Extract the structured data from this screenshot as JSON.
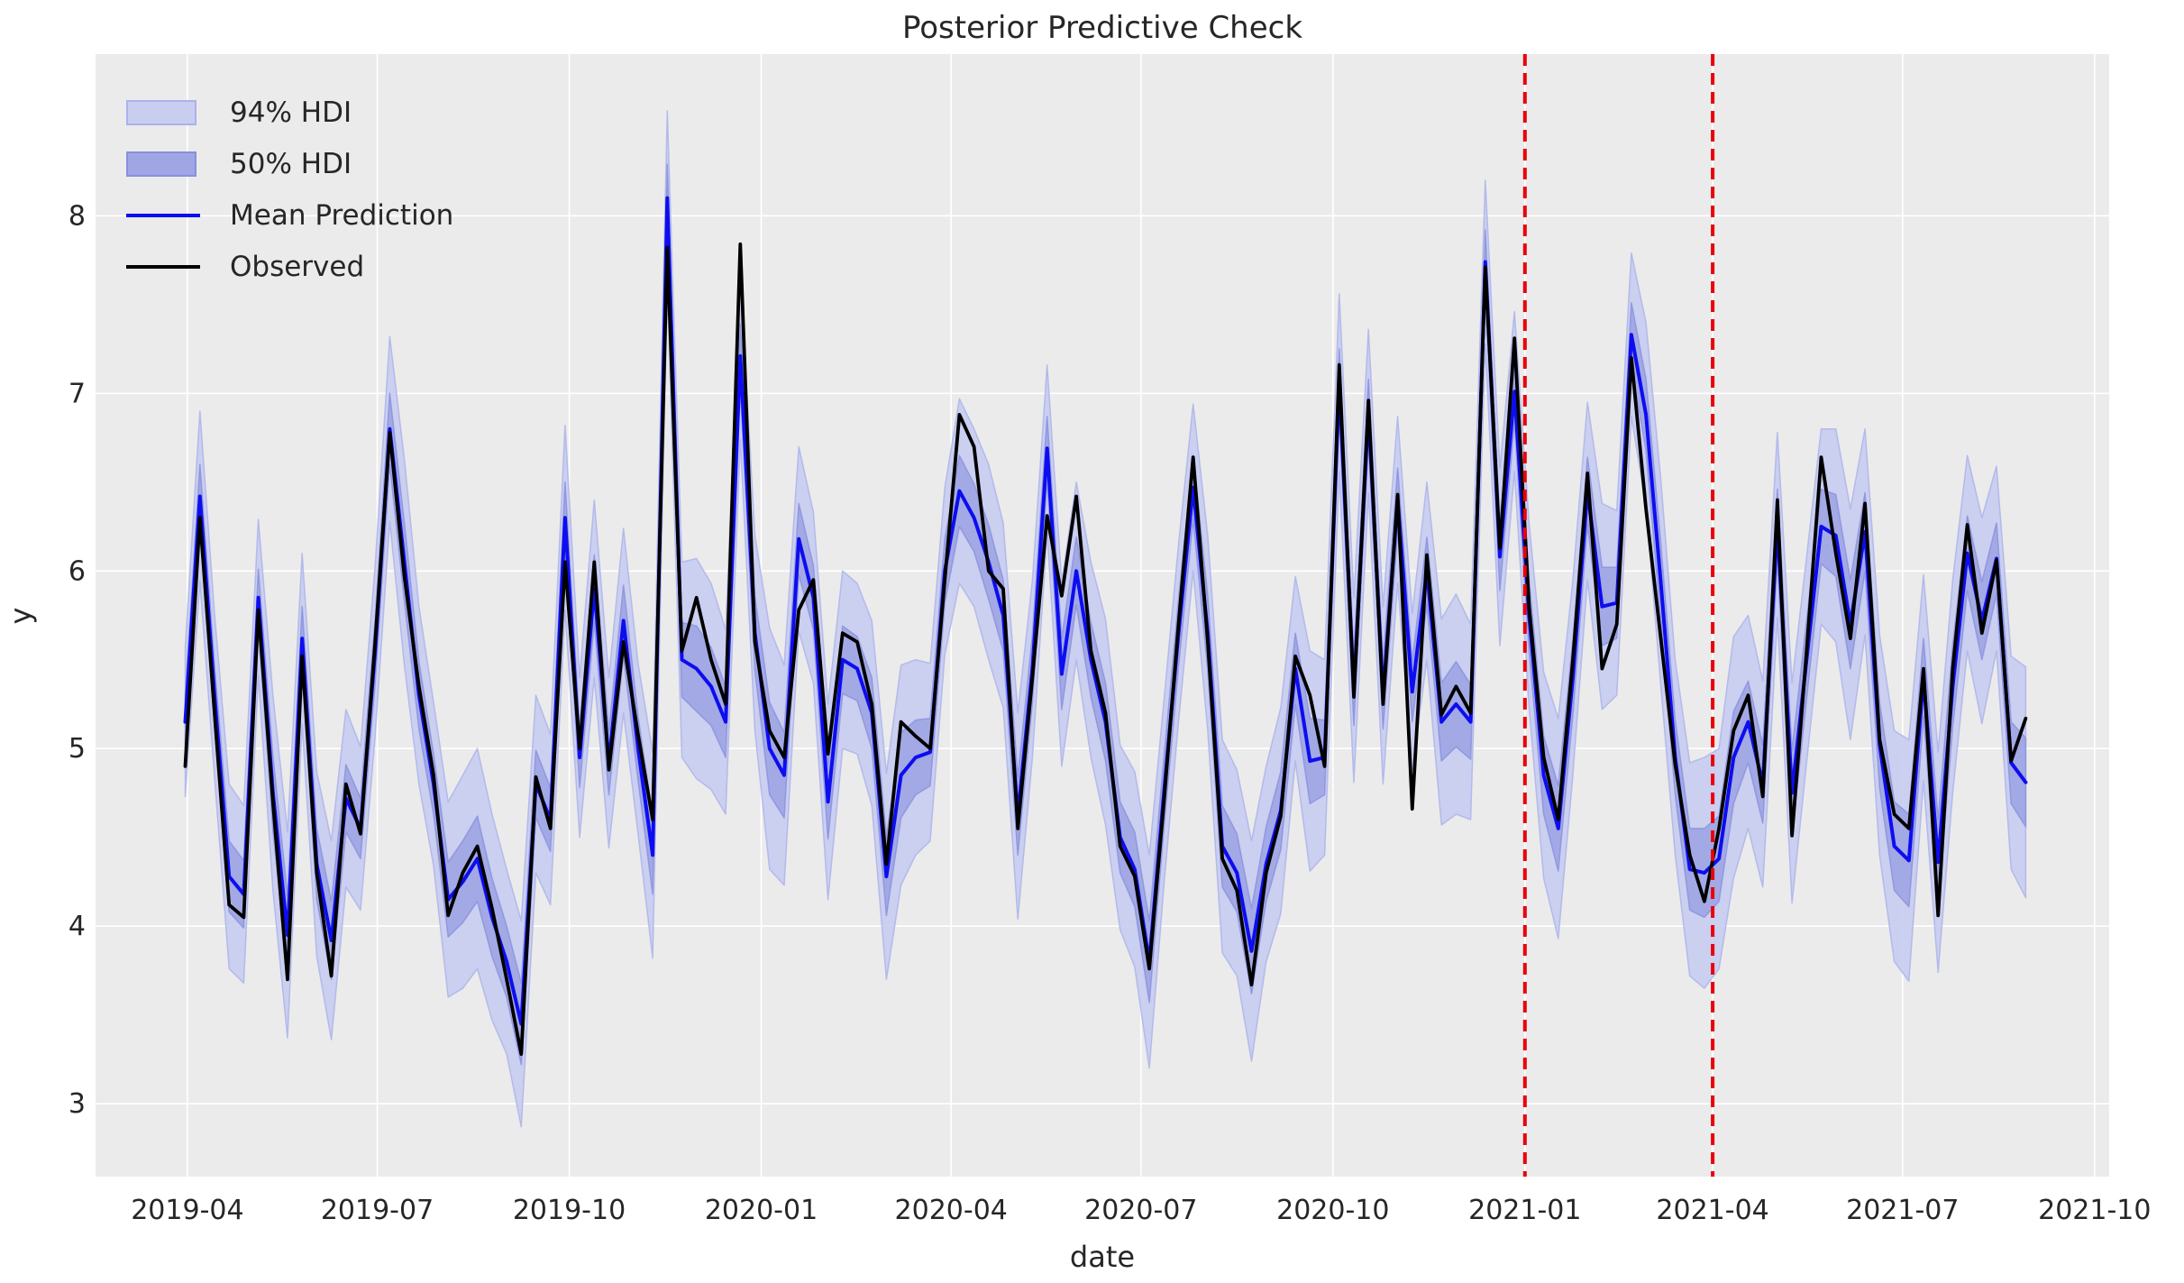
{
  "chart_data": {
    "type": "line",
    "title": "Posterior Predictive Check",
    "xlabel": "date",
    "ylabel": "y",
    "grid": true,
    "legend_position": "upper-left",
    "background": {
      "figure": "#ffffff",
      "axes": "#ebebeb",
      "gridline": "#ffffff"
    },
    "colors": {
      "hdi94_fill": "#c9cdf0",
      "hdi94_edge": "#aab2ea",
      "hdi50_fill": "#9fa6e3",
      "hdi50_edge": "#8890dd",
      "mean_line": "#0d0df0",
      "observed_line": "#000000",
      "event_line": "#e8000b",
      "text": "#262626"
    },
    "legend": [
      {
        "label": "94% HDI",
        "type": "patch",
        "fill": "#c9cdf0",
        "edge": "#aab2ea"
      },
      {
        "label": "50% HDI",
        "type": "patch",
        "fill": "#9fa6e3",
        "edge": "#8890dd"
      },
      {
        "label": "Mean Prediction",
        "type": "line",
        "color": "#0d0df0"
      },
      {
        "label": "Observed",
        "type": "line",
        "color": "#000000"
      }
    ],
    "xlim": [
      "2019-02-16",
      "2021-10-08"
    ],
    "ylim": [
      2.59,
      8.91
    ],
    "y_ticks": [
      3,
      4,
      5,
      6,
      7,
      8
    ],
    "x_ticks": [
      {
        "label": "2019-04",
        "date": "2019-04-01"
      },
      {
        "label": "2019-07",
        "date": "2019-07-01"
      },
      {
        "label": "2019-10",
        "date": "2019-10-01"
      },
      {
        "label": "2020-01",
        "date": "2020-01-01"
      },
      {
        "label": "2020-04",
        "date": "2020-04-01"
      },
      {
        "label": "2020-07",
        "date": "2020-07-01"
      },
      {
        "label": "2020-10",
        "date": "2020-10-01"
      },
      {
        "label": "2021-01",
        "date": "2021-01-01"
      },
      {
        "label": "2021-04",
        "date": "2021-04-01"
      },
      {
        "label": "2021-07",
        "date": "2021-07-01"
      },
      {
        "label": "2021-10",
        "date": "2021-10-01"
      }
    ],
    "vlines": [
      {
        "date": "2021-01-01",
        "color": "#e8000b",
        "style": "dashed"
      },
      {
        "date": "2021-04-01",
        "color": "#e8000b",
        "style": "dashed"
      }
    ],
    "dates": [
      "2019-03-31",
      "2019-04-07",
      "2019-04-14",
      "2019-04-21",
      "2019-04-28",
      "2019-05-05",
      "2019-05-12",
      "2019-05-19",
      "2019-05-26",
      "2019-06-02",
      "2019-06-09",
      "2019-06-16",
      "2019-06-23",
      "2019-06-30",
      "2019-07-07",
      "2019-07-14",
      "2019-07-21",
      "2019-07-28",
      "2019-08-04",
      "2019-08-11",
      "2019-08-18",
      "2019-08-25",
      "2019-09-01",
      "2019-09-08",
      "2019-09-15",
      "2019-09-22",
      "2019-09-29",
      "2019-10-06",
      "2019-10-13",
      "2019-10-20",
      "2019-10-27",
      "2019-11-03",
      "2019-11-10",
      "2019-11-17",
      "2019-11-24",
      "2019-12-01",
      "2019-12-08",
      "2019-12-15",
      "2019-12-22",
      "2019-12-29",
      "2020-01-05",
      "2020-01-12",
      "2020-01-19",
      "2020-01-26",
      "2020-02-02",
      "2020-02-09",
      "2020-02-16",
      "2020-02-23",
      "2020-03-01",
      "2020-03-08",
      "2020-03-15",
      "2020-03-22",
      "2020-03-29",
      "2020-04-05",
      "2020-04-12",
      "2020-04-19",
      "2020-04-26",
      "2020-05-03",
      "2020-05-10",
      "2020-05-17",
      "2020-05-24",
      "2020-05-31",
      "2020-06-07",
      "2020-06-14",
      "2020-06-21",
      "2020-06-28",
      "2020-07-05",
      "2020-07-12",
      "2020-07-19",
      "2020-07-26",
      "2020-08-02",
      "2020-08-09",
      "2020-08-16",
      "2020-08-23",
      "2020-08-30",
      "2020-09-06",
      "2020-09-13",
      "2020-09-20",
      "2020-09-27",
      "2020-10-04",
      "2020-10-11",
      "2020-10-18",
      "2020-10-25",
      "2020-11-01",
      "2020-11-08",
      "2020-11-15",
      "2020-11-22",
      "2020-11-29",
      "2020-12-06",
      "2020-12-13",
      "2020-12-20",
      "2020-12-27",
      "2021-01-03",
      "2021-01-10",
      "2021-01-17",
      "2021-01-24",
      "2021-01-31",
      "2021-02-07",
      "2021-02-14",
      "2021-02-21",
      "2021-02-28",
      "2021-03-07",
      "2021-03-14",
      "2021-03-21",
      "2021-03-28",
      "2021-04-04",
      "2021-04-11",
      "2021-04-18",
      "2021-04-25",
      "2021-05-02",
      "2021-05-09",
      "2021-05-16",
      "2021-05-23",
      "2021-05-30",
      "2021-06-06",
      "2021-06-13",
      "2021-06-20",
      "2021-06-27",
      "2021-07-04",
      "2021-07-11",
      "2021-07-18",
      "2021-07-25",
      "2021-08-01",
      "2021-08-08",
      "2021-08-15",
      "2021-08-22",
      "2021-08-29"
    ],
    "observed": [
      4.9,
      6.3,
      5.2,
      4.12,
      4.05,
      5.78,
      4.7,
      3.7,
      5.52,
      4.3,
      3.72,
      4.8,
      4.52,
      5.6,
      6.78,
      5.97,
      5.35,
      4.85,
      4.06,
      4.3,
      4.45,
      4.1,
      3.7,
      3.28,
      4.84,
      4.55,
      6.05,
      5.0,
      6.05,
      4.88,
      5.6,
      5.08,
      4.6,
      7.82,
      5.55,
      5.85,
      5.5,
      5.25,
      7.84,
      5.6,
      5.1,
      4.95,
      5.78,
      5.95,
      4.97,
      5.65,
      5.6,
      5.25,
      4.35,
      5.15,
      5.07,
      5.0,
      5.95,
      6.88,
      6.7,
      6.0,
      5.9,
      4.55,
      5.4,
      6.31,
      5.86,
      6.42,
      5.55,
      5.2,
      4.45,
      4.28,
      3.76,
      4.7,
      5.7,
      6.64,
      5.6,
      4.38,
      4.2,
      3.67,
      4.3,
      4.62,
      5.52,
      5.3,
      4.9,
      7.16,
      5.29,
      6.96,
      5.25,
      6.43,
      4.66,
      6.09,
      5.19,
      5.35,
      5.2,
      7.71,
      6.13,
      7.31,
      5.8,
      4.95,
      4.6,
      5.5,
      6.55,
      5.45,
      5.7,
      7.2,
      6.35,
      5.63,
      4.91,
      4.4,
      4.14,
      4.55,
      5.1,
      5.3,
      4.73,
      6.4,
      4.51,
      5.55,
      6.64,
      6.1,
      5.62,
      6.38,
      5.05,
      4.63,
      4.55,
      5.45,
      4.06,
      5.45,
      6.26,
      5.65,
      6.06,
      4.93,
      5.17
    ],
    "mean": [
      5.15,
      6.42,
      5.3,
      4.28,
      4.18,
      5.85,
      4.75,
      3.95,
      5.62,
      4.35,
      3.92,
      4.72,
      4.55,
      5.55,
      6.8,
      6.05,
      5.3,
      4.8,
      4.15,
      4.25,
      4.38,
      4.05,
      3.8,
      3.45,
      4.8,
      4.6,
      6.3,
      4.95,
      5.9,
      4.92,
      5.72,
      5.0,
      4.4,
      8.1,
      5.5,
      5.45,
      5.35,
      5.15,
      7.21,
      5.65,
      5.0,
      4.85,
      6.18,
      5.85,
      4.7,
      5.5,
      5.45,
      5.2,
      4.28,
      4.85,
      4.95,
      4.98,
      6.0,
      6.45,
      6.3,
      6.05,
      5.75,
      4.62,
      5.45,
      6.69,
      5.42,
      6.0,
      5.5,
      5.15,
      4.5,
      4.32,
      3.8,
      4.75,
      5.65,
      6.47,
      5.65,
      4.45,
      4.3,
      3.86,
      4.35,
      4.65,
      5.45,
      4.93,
      4.95,
      7.06,
      5.33,
      6.9,
      5.3,
      6.4,
      5.32,
      6.0,
      5.15,
      5.25,
      5.15,
      7.74,
      6.08,
      7.01,
      5.75,
      4.85,
      4.55,
      5.4,
      6.45,
      5.8,
      5.82,
      7.33,
      6.88,
      5.95,
      4.95,
      4.32,
      4.3,
      4.38,
      4.95,
      5.15,
      4.8,
      6.26,
      4.75,
      5.5,
      6.25,
      6.2,
      5.7,
      6.22,
      5.02,
      4.45,
      4.37,
      5.4,
      4.36,
      5.35,
      6.1,
      5.72,
      6.07,
      4.92,
      4.81
    ],
    "hdi50_half": [
      0.15,
      0.18,
      0.17,
      0.2,
      0.19,
      0.16,
      0.21,
      0.22,
      0.18,
      0.2,
      0.22,
      0.19,
      0.17,
      0.18,
      0.2,
      0.22,
      0.19,
      0.17,
      0.21,
      0.23,
      0.24,
      0.22,
      0.2,
      0.23,
      0.19,
      0.18,
      0.2,
      0.17,
      0.19,
      0.18,
      0.2,
      0.18,
      0.22,
      0.19,
      0.21,
      0.24,
      0.22,
      0.2,
      0.18,
      0.21,
      0.26,
      0.24,
      0.2,
      0.18,
      0.21,
      0.19,
      0.18,
      0.2,
      0.22,
      0.24,
      0.21,
      0.19,
      0.18,
      0.2,
      0.19,
      0.21,
      0.2,
      0.22,
      0.19,
      0.18,
      0.2,
      0.19,
      0.21,
      0.22,
      0.2,
      0.21,
      0.23,
      0.2,
      0.19,
      0.18,
      0.21,
      0.23,
      0.22,
      0.24,
      0.21,
      0.22,
      0.2,
      0.24,
      0.21,
      0.19,
      0.2,
      0.18,
      0.19,
      0.18,
      0.17,
      0.19,
      0.22,
      0.24,
      0.21,
      0.18,
      0.19,
      0.17,
      0.2,
      0.22,
      0.24,
      0.21,
      0.19,
      0.22,
      0.2,
      0.18,
      0.2,
      0.22,
      0.21,
      0.23,
      0.25,
      0.24,
      0.26,
      0.23,
      0.22,
      0.2,
      0.24,
      0.22,
      0.21,
      0.23,
      0.25,
      0.22,
      0.24,
      0.25,
      0.26,
      0.22,
      0.24,
      0.23,
      0.21,
      0.22,
      0.2,
      0.23,
      0.25
    ],
    "hdi94_half": [
      0.42,
      0.48,
      0.46,
      0.52,
      0.5,
      0.44,
      0.55,
      0.58,
      0.48,
      0.52,
      0.56,
      0.5,
      0.46,
      0.48,
      0.52,
      0.58,
      0.5,
      0.46,
      0.55,
      0.6,
      0.62,
      0.58,
      0.52,
      0.58,
      0.5,
      0.48,
      0.52,
      0.45,
      0.5,
      0.48,
      0.52,
      0.48,
      0.58,
      0.49,
      0.55,
      0.62,
      0.58,
      0.52,
      0.47,
      0.55,
      0.68,
      0.62,
      0.52,
      0.48,
      0.55,
      0.5,
      0.48,
      0.52,
      0.58,
      0.62,
      0.55,
      0.5,
      0.47,
      0.52,
      0.5,
      0.55,
      0.52,
      0.58,
      0.5,
      0.47,
      0.52,
      0.5,
      0.55,
      0.58,
      0.52,
      0.55,
      0.6,
      0.52,
      0.5,
      0.47,
      0.55,
      0.6,
      0.58,
      0.62,
      0.55,
      0.58,
      0.52,
      0.62,
      0.55,
      0.5,
      0.52,
      0.46,
      0.5,
      0.47,
      0.44,
      0.5,
      0.58,
      0.62,
      0.55,
      0.46,
      0.5,
      0.45,
      0.52,
      0.58,
      0.62,
      0.55,
      0.5,
      0.58,
      0.52,
      0.46,
      0.52,
      0.58,
      0.55,
      0.6,
      0.65,
      0.62,
      0.68,
      0.6,
      0.58,
      0.52,
      0.62,
      0.58,
      0.55,
      0.6,
      0.65,
      0.58,
      0.62,
      0.65,
      0.68,
      0.58,
      0.62,
      0.6,
      0.55,
      0.58,
      0.52,
      0.6,
      0.65
    ]
  }
}
